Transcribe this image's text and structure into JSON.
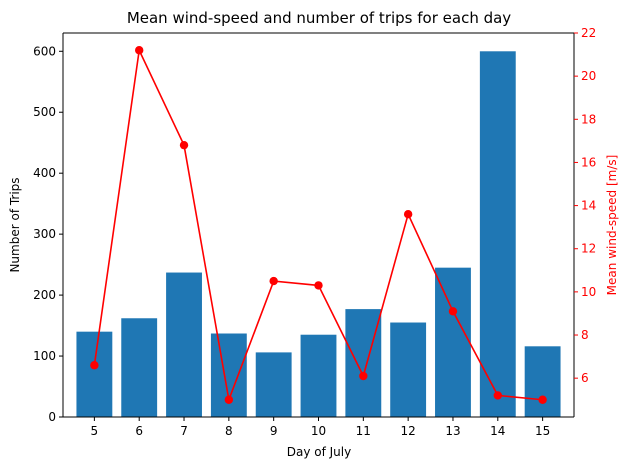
{
  "chart_data": {
    "type": "bar+line",
    "title": "Mean wind-speed and number of trips for each day",
    "xlabel": "Day of July",
    "ylabel_left": "Number of Trips",
    "ylabel_right": "Mean wind-speed [m/s]",
    "categories": [
      "5",
      "6",
      "7",
      "8",
      "9",
      "10",
      "11",
      "12",
      "13",
      "14",
      "15"
    ],
    "series": [
      {
        "type": "bar",
        "axis": "left",
        "values": [
          140,
          162,
          237,
          137,
          106,
          135,
          177,
          155,
          245,
          600,
          116
        ]
      },
      {
        "type": "line",
        "axis": "right",
        "values": [
          6.6,
          21.2,
          16.8,
          5.0,
          10.5,
          10.3,
          6.1,
          13.6,
          9.1,
          5.2,
          5.0
        ]
      }
    ],
    "ylim_left": [
      0,
      630
    ],
    "yticks_left": [
      0,
      100,
      200,
      300,
      400,
      500,
      600
    ],
    "ylim_right": [
      4.2,
      22
    ],
    "yticks_right": [
      6,
      8,
      10,
      12,
      14,
      16,
      18,
      20,
      22
    ],
    "grid": false,
    "legend": "none"
  },
  "colors": {
    "bar": "#1f77b4",
    "line": "#ff0000",
    "right_axis": "#ff0000",
    "axis": "#000000"
  }
}
